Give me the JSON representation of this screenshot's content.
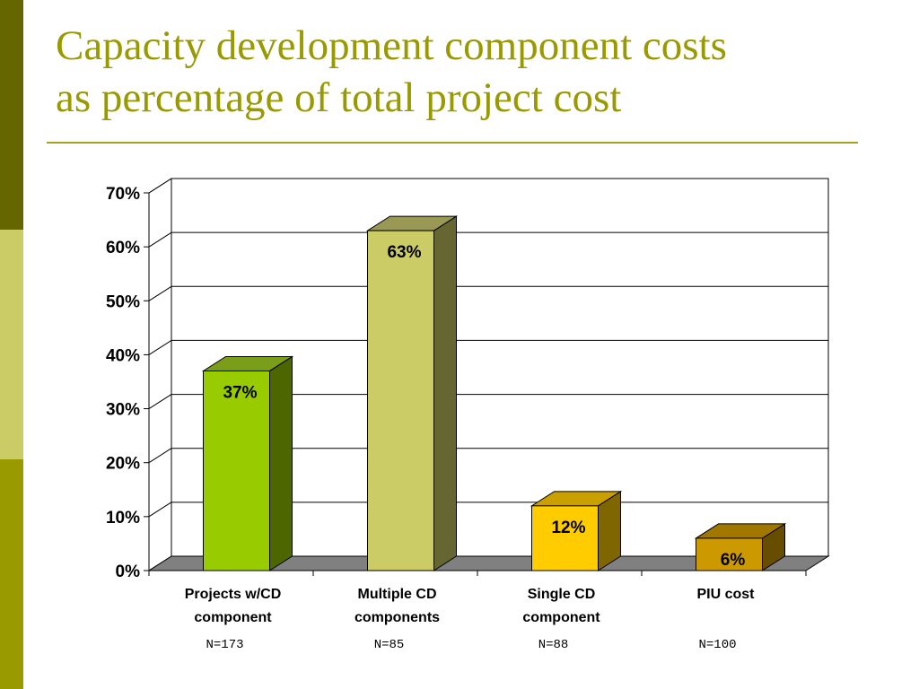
{
  "slide": {
    "title_line1": "Capacity development component costs",
    "title_line2": "as percentage of  total project cost"
  },
  "colors": {
    "title": "#999900",
    "strip": [
      "#666600",
      "#cccc66",
      "#999900"
    ],
    "floor": "#808080"
  },
  "chart_data": {
    "type": "bar",
    "style": "3d-column",
    "categories": [
      [
        "Projects w/CD",
        "component"
      ],
      [
        "Multiple CD",
        "components"
      ],
      [
        "Single CD",
        "component"
      ],
      [
        "PIU cost"
      ]
    ],
    "sample_sizes": [
      "N=173",
      "N=85",
      "N=88",
      "N=100"
    ],
    "values": [
      37,
      63,
      12,
      6
    ],
    "data_labels": [
      "37%",
      "63%",
      "12%",
      "6%"
    ],
    "bar_colors": [
      {
        "front": "#99cc00",
        "top": "#7a9e1a",
        "side": "#4d6600"
      },
      {
        "front": "#cccc66",
        "top": "#999955",
        "side": "#666633"
      },
      {
        "front": "#ffcc00",
        "top": "#c9a000",
        "side": "#806600"
      },
      {
        "front": "#cc9900",
        "top": "#a07800",
        "side": "#664d00"
      }
    ],
    "ylim": [
      0,
      70
    ],
    "yticks": [
      0,
      10,
      20,
      30,
      40,
      50,
      60,
      70
    ],
    "ytick_labels": [
      "0%",
      "10%",
      "20%",
      "30%",
      "40%",
      "50%",
      "60%",
      "70%"
    ],
    "grid": true,
    "legend": "none"
  }
}
